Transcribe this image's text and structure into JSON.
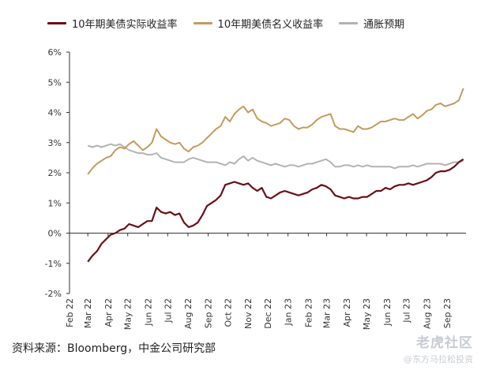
{
  "legend": {
    "real": "10年期美债实际收益率",
    "nominal": "10年期美债名义收益率",
    "breakeven": "通胀预期"
  },
  "source_text": "资料来源：Bloomberg，中金公司研究部",
  "watermark": {
    "main": "老虎社区",
    "sub": "@东方马拉松投资"
  },
  "colors": {
    "real": "#6b0f14",
    "nominal": "#c49a5c",
    "breakeven": "#b3b3b3",
    "axis": "#333333"
  },
  "chart_data": {
    "type": "line",
    "ylabel": "",
    "xlabel": "",
    "ylim": [
      -2,
      6
    ],
    "y_ticks": [
      "-2%",
      "-1%",
      "0%",
      "1%",
      "2%",
      "3%",
      "4%",
      "5%",
      "6%"
    ],
    "x_ticks": [
      "Feb 22",
      "Mar 22",
      "Apr 22",
      "May 22",
      "Jun 22",
      "Jul 22",
      "Aug 22",
      "Sep 22",
      "Oct 22",
      "Nov 22",
      "Dec 22",
      "Jan 23",
      "Feb 23",
      "Mar 23",
      "Apr 23",
      "May 23",
      "Jun 23",
      "Jul 23",
      "Aug 23",
      "Sep 23"
    ],
    "x_range": [
      "2022-02-01",
      "2023-09-30"
    ],
    "grid": false,
    "series": [
      {
        "name": "10年期美债实际收益率",
        "key": "real",
        "x": [
          "2022-03-01",
          "2022-03-08",
          "2022-03-15",
          "2022-03-22",
          "2022-03-29",
          "2022-04-05",
          "2022-04-12",
          "2022-04-19",
          "2022-04-26",
          "2022-05-03",
          "2022-05-10",
          "2022-05-17",
          "2022-05-24",
          "2022-05-31",
          "2022-06-07",
          "2022-06-14",
          "2022-06-21",
          "2022-06-28",
          "2022-07-05",
          "2022-07-12",
          "2022-07-19",
          "2022-07-26",
          "2022-08-02",
          "2022-08-09",
          "2022-08-16",
          "2022-08-23",
          "2022-08-30",
          "2022-09-06",
          "2022-09-13",
          "2022-09-20",
          "2022-09-27",
          "2022-10-04",
          "2022-10-11",
          "2022-10-18",
          "2022-10-25",
          "2022-11-01",
          "2022-11-08",
          "2022-11-15",
          "2022-11-22",
          "2022-11-29",
          "2022-12-06",
          "2022-12-13",
          "2022-12-20",
          "2022-12-27",
          "2023-01-03",
          "2023-01-10",
          "2023-01-17",
          "2023-01-24",
          "2023-01-31",
          "2023-02-07",
          "2023-02-14",
          "2023-02-21",
          "2023-02-28",
          "2023-03-07",
          "2023-03-14",
          "2023-03-21",
          "2023-03-28",
          "2023-04-04",
          "2023-04-11",
          "2023-04-18",
          "2023-04-25",
          "2023-05-02",
          "2023-05-09",
          "2023-05-16",
          "2023-05-23",
          "2023-05-30",
          "2023-06-06",
          "2023-06-13",
          "2023-06-20",
          "2023-06-27",
          "2023-07-04",
          "2023-07-11",
          "2023-07-18",
          "2023-07-25",
          "2023-08-01",
          "2023-08-08",
          "2023-08-15",
          "2023-08-22",
          "2023-08-29",
          "2023-09-05",
          "2023-09-12",
          "2023-09-19",
          "2023-09-26"
        ],
        "values": [
          -0.95,
          -0.75,
          -0.6,
          -0.35,
          -0.2,
          -0.05,
          0.0,
          0.1,
          0.15,
          0.3,
          0.25,
          0.2,
          0.3,
          0.4,
          0.4,
          0.85,
          0.7,
          0.65,
          0.7,
          0.6,
          0.65,
          0.35,
          0.2,
          0.25,
          0.35,
          0.6,
          0.9,
          1.0,
          1.1,
          1.25,
          1.6,
          1.65,
          1.7,
          1.65,
          1.6,
          1.65,
          1.5,
          1.4,
          1.5,
          1.2,
          1.15,
          1.25,
          1.35,
          1.4,
          1.35,
          1.3,
          1.25,
          1.3,
          1.35,
          1.45,
          1.5,
          1.6,
          1.55,
          1.45,
          1.25,
          1.2,
          1.15,
          1.2,
          1.15,
          1.15,
          1.2,
          1.2,
          1.3,
          1.4,
          1.4,
          1.5,
          1.45,
          1.55,
          1.6,
          1.6,
          1.65,
          1.6,
          1.65,
          1.7,
          1.75,
          1.85,
          2.0,
          2.05,
          2.05,
          2.1,
          2.2,
          2.35,
          2.45
        ]
      },
      {
        "name": "10年期美债名义收益率",
        "key": "nominal",
        "x": [
          "2022-03-01",
          "2022-03-08",
          "2022-03-15",
          "2022-03-22",
          "2022-03-29",
          "2022-04-05",
          "2022-04-12",
          "2022-04-19",
          "2022-04-26",
          "2022-05-03",
          "2022-05-10",
          "2022-05-17",
          "2022-05-24",
          "2022-05-31",
          "2022-06-07",
          "2022-06-14",
          "2022-06-21",
          "2022-06-28",
          "2022-07-05",
          "2022-07-12",
          "2022-07-19",
          "2022-07-26",
          "2022-08-02",
          "2022-08-09",
          "2022-08-16",
          "2022-08-23",
          "2022-08-30",
          "2022-09-06",
          "2022-09-13",
          "2022-09-20",
          "2022-09-27",
          "2022-10-04",
          "2022-10-11",
          "2022-10-18",
          "2022-10-25",
          "2022-11-01",
          "2022-11-08",
          "2022-11-15",
          "2022-11-22",
          "2022-11-29",
          "2022-12-06",
          "2022-12-13",
          "2022-12-20",
          "2022-12-27",
          "2023-01-03",
          "2023-01-10",
          "2023-01-17",
          "2023-01-24",
          "2023-01-31",
          "2023-02-07",
          "2023-02-14",
          "2023-02-21",
          "2023-02-28",
          "2023-03-07",
          "2023-03-14",
          "2023-03-21",
          "2023-03-28",
          "2023-04-04",
          "2023-04-11",
          "2023-04-18",
          "2023-04-25",
          "2023-05-02",
          "2023-05-09",
          "2023-05-16",
          "2023-05-23",
          "2023-05-30",
          "2023-06-06",
          "2023-06-13",
          "2023-06-20",
          "2023-06-27",
          "2023-07-04",
          "2023-07-11",
          "2023-07-18",
          "2023-07-25",
          "2023-08-01",
          "2023-08-08",
          "2023-08-15",
          "2023-08-22",
          "2023-08-29",
          "2023-09-05",
          "2023-09-12",
          "2023-09-19",
          "2023-09-26"
        ],
        "values": [
          1.95,
          2.15,
          2.3,
          2.4,
          2.5,
          2.55,
          2.75,
          2.85,
          2.8,
          2.95,
          3.05,
          2.9,
          2.75,
          2.85,
          3.0,
          3.45,
          3.2,
          3.1,
          3.0,
          2.95,
          3.0,
          2.8,
          2.7,
          2.85,
          2.9,
          3.0,
          3.15,
          3.3,
          3.45,
          3.55,
          3.85,
          3.7,
          3.95,
          4.1,
          4.2,
          4.0,
          4.1,
          3.8,
          3.7,
          3.65,
          3.55,
          3.6,
          3.65,
          3.8,
          3.75,
          3.55,
          3.45,
          3.5,
          3.5,
          3.6,
          3.75,
          3.85,
          3.9,
          3.95,
          3.55,
          3.45,
          3.45,
          3.4,
          3.35,
          3.55,
          3.45,
          3.45,
          3.5,
          3.6,
          3.7,
          3.7,
          3.75,
          3.8,
          3.75,
          3.75,
          3.85,
          3.95,
          3.8,
          3.9,
          4.05,
          4.1,
          4.25,
          4.3,
          4.2,
          4.25,
          4.3,
          4.4,
          4.8
        ]
      },
      {
        "name": "通胀预期",
        "key": "breakeven",
        "x": [
          "2022-03-01",
          "2022-03-08",
          "2022-03-15",
          "2022-03-22",
          "2022-03-29",
          "2022-04-05",
          "2022-04-12",
          "2022-04-19",
          "2022-04-26",
          "2022-05-03",
          "2022-05-10",
          "2022-05-17",
          "2022-05-24",
          "2022-05-31",
          "2022-06-07",
          "2022-06-14",
          "2022-06-21",
          "2022-06-28",
          "2022-07-05",
          "2022-07-12",
          "2022-07-19",
          "2022-07-26",
          "2022-08-02",
          "2022-08-09",
          "2022-08-16",
          "2022-08-23",
          "2022-08-30",
          "2022-09-06",
          "2022-09-13",
          "2022-09-20",
          "2022-09-27",
          "2022-10-04",
          "2022-10-11",
          "2022-10-18",
          "2022-10-25",
          "2022-11-01",
          "2022-11-08",
          "2022-11-15",
          "2022-11-22",
          "2022-11-29",
          "2022-12-06",
          "2022-12-13",
          "2022-12-20",
          "2022-12-27",
          "2023-01-03",
          "2023-01-10",
          "2023-01-17",
          "2023-01-24",
          "2023-01-31",
          "2023-02-07",
          "2023-02-14",
          "2023-02-21",
          "2023-02-28",
          "2023-03-07",
          "2023-03-14",
          "2023-03-21",
          "2023-03-28",
          "2023-04-04",
          "2023-04-11",
          "2023-04-18",
          "2023-04-25",
          "2023-05-02",
          "2023-05-09",
          "2023-05-16",
          "2023-05-23",
          "2023-05-30",
          "2023-06-06",
          "2023-06-13",
          "2023-06-20",
          "2023-06-27",
          "2023-07-04",
          "2023-07-11",
          "2023-07-18",
          "2023-07-25",
          "2023-08-01",
          "2023-08-08",
          "2023-08-15",
          "2023-08-22",
          "2023-08-29",
          "2023-09-05",
          "2023-09-12",
          "2023-09-19",
          "2023-09-26"
        ],
        "values": [
          2.9,
          2.85,
          2.9,
          2.85,
          2.9,
          2.95,
          2.9,
          2.95,
          2.85,
          2.75,
          2.7,
          2.65,
          2.65,
          2.6,
          2.6,
          2.65,
          2.5,
          2.45,
          2.4,
          2.35,
          2.35,
          2.35,
          2.45,
          2.5,
          2.45,
          2.4,
          2.35,
          2.35,
          2.35,
          2.3,
          2.25,
          2.35,
          2.3,
          2.45,
          2.55,
          2.4,
          2.5,
          2.4,
          2.35,
          2.3,
          2.25,
          2.3,
          2.25,
          2.2,
          2.25,
          2.25,
          2.2,
          2.25,
          2.3,
          2.3,
          2.35,
          2.4,
          2.45,
          2.35,
          2.2,
          2.2,
          2.25,
          2.25,
          2.2,
          2.25,
          2.2,
          2.25,
          2.2,
          2.2,
          2.2,
          2.2,
          2.2,
          2.15,
          2.2,
          2.2,
          2.2,
          2.25,
          2.2,
          2.25,
          2.3,
          2.3,
          2.3,
          2.3,
          2.25,
          2.3,
          2.35,
          2.35,
          2.4
        ]
      }
    ]
  }
}
